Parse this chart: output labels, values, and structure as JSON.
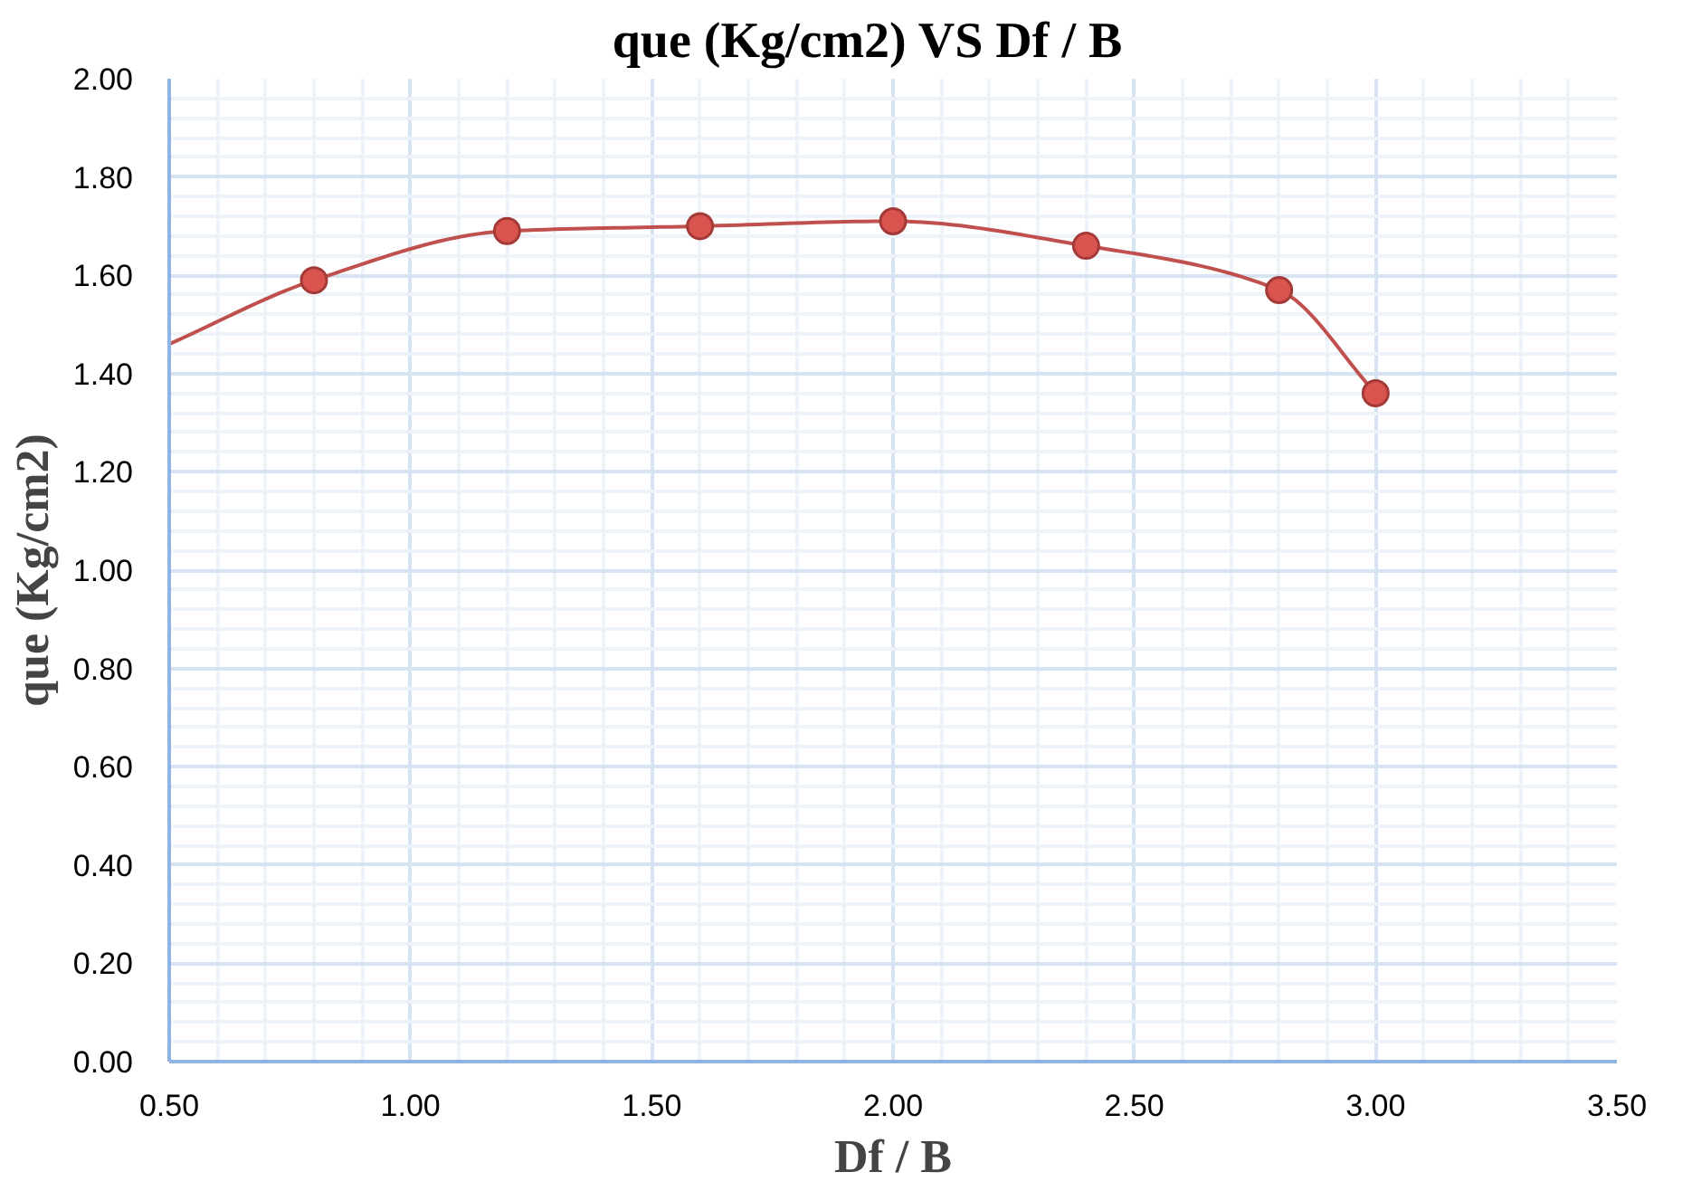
{
  "chart_data": {
    "type": "line",
    "title": "que (Kg/cm2)   VS   Df / B",
    "xlabel": "Df / B",
    "ylabel": "que (Kg/cm2)",
    "series": [
      {
        "type": "line",
        "color": "#c0504d",
        "x": [
          0.5,
          0.8,
          1.2,
          1.6,
          2.0,
          2.4,
          2.8,
          3.0
        ],
        "values": [
          1.46,
          1.59,
          1.69,
          1.7,
          1.71,
          1.66,
          1.57,
          1.36
        ],
        "marker": "none"
      },
      {
        "type": "scatter",
        "color": "#d9534f",
        "x": [
          0.8,
          1.2,
          1.6,
          2.0,
          2.4,
          2.8,
          3.0
        ],
        "values": [
          1.59,
          1.69,
          1.7,
          1.71,
          1.66,
          1.57,
          1.36
        ],
        "marker": "circle"
      }
    ],
    "xlim": [
      0.5,
      3.5
    ],
    "ylim": [
      0,
      2
    ],
    "xticks": [
      {
        "value": 0.5,
        "label": "0.50"
      },
      {
        "value": 1.0,
        "label": "1.00"
      },
      {
        "value": 1.5,
        "label": "1.50"
      },
      {
        "value": 2.0,
        "label": "2.00"
      },
      {
        "value": 2.5,
        "label": "2.50"
      },
      {
        "value": 3.0,
        "label": "3.00"
      },
      {
        "value": 3.5,
        "label": "3.50"
      }
    ],
    "yticks": [
      {
        "value": 0,
        "label": "0.00"
      },
      {
        "value": 0.2,
        "label": "0.20"
      },
      {
        "value": 0.4,
        "label": "0.40"
      },
      {
        "value": 0.6,
        "label": "0.60"
      },
      {
        "value": 0.8,
        "label": "0.80"
      },
      {
        "value": 1.0,
        "label": "1.00"
      },
      {
        "value": 1.2,
        "label": "1.20"
      },
      {
        "value": 1.4,
        "label": "1.40"
      },
      {
        "value": 1.6,
        "label": "1.60"
      },
      {
        "value": 1.8,
        "label": "1.80"
      },
      {
        "value": 2.0,
        "label": "2.00"
      }
    ],
    "grid": true
  }
}
